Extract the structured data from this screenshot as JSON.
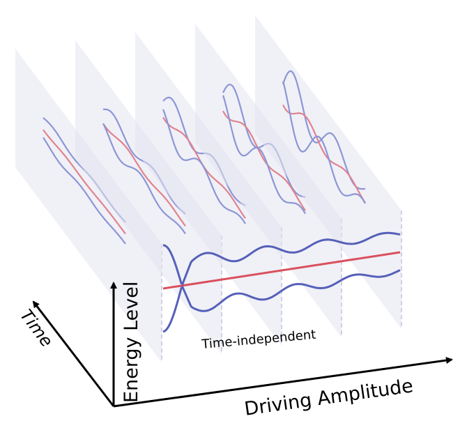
{
  "labels": {
    "y_axis": "Energy Level",
    "x_axis": "Driving Amplitude",
    "z_axis": "Time",
    "static_panel": "Time-independent"
  },
  "colors": {
    "panel": "#e4e4f0",
    "blue_curve": "#8b96d6",
    "red_curve": "#e0838e",
    "static_blue": "#5560b8",
    "static_red": "#d9505d",
    "axis": "#000000"
  },
  "panel_count": 5
}
